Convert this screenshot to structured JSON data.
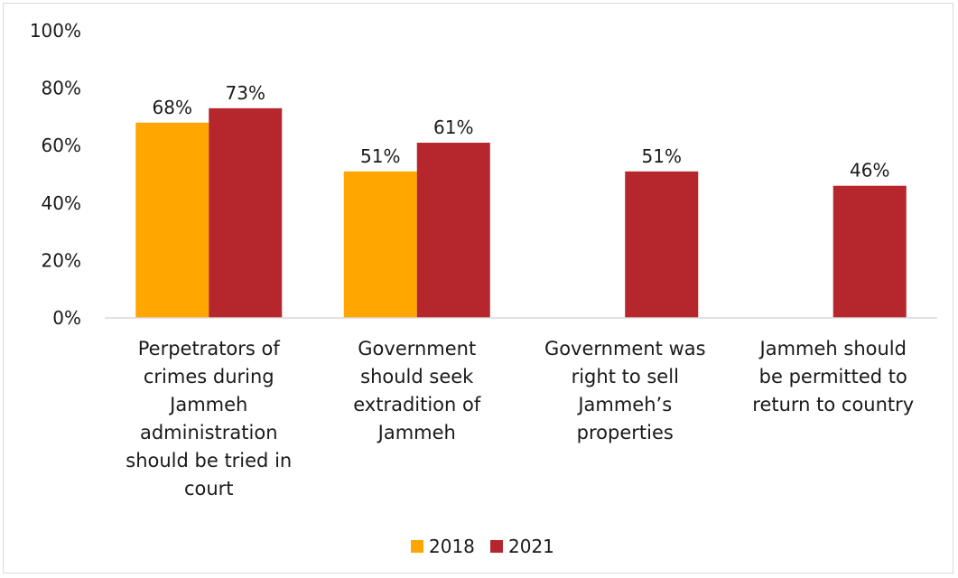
{
  "chart_data": {
    "type": "bar",
    "title": "",
    "xlabel": "",
    "ylabel": "",
    "ylim": [
      0,
      100
    ],
    "y_tick_step": 20,
    "y_tick_format": "percent",
    "grid": false,
    "legend_position": "bottom",
    "categories": [
      "Perpetrators of crimes during Jammeh administration should be tried in court",
      "Government should seek extradition of Jammeh",
      "Government was right to sell Jammeh’s properties",
      "Jammeh should be permitted to return to country"
    ],
    "category_label_lines": [
      [
        "Perpetrators of",
        "crimes during",
        "Jammeh",
        "administration",
        "should be tried in",
        "court"
      ],
      [
        "Government",
        "should seek",
        "extradition of",
        "Jammeh"
      ],
      [
        "Government was",
        "right to sell",
        "Jammeh’s",
        "properties"
      ],
      [
        "Jammeh should",
        "be permitted to",
        "return to country"
      ]
    ],
    "series": [
      {
        "name": "2018",
        "color": "#FFA600",
        "values": [
          68,
          51,
          null,
          null
        ]
      },
      {
        "name": "2021",
        "color": "#B5272D",
        "values": [
          73,
          61,
          51,
          46
        ]
      }
    ]
  }
}
